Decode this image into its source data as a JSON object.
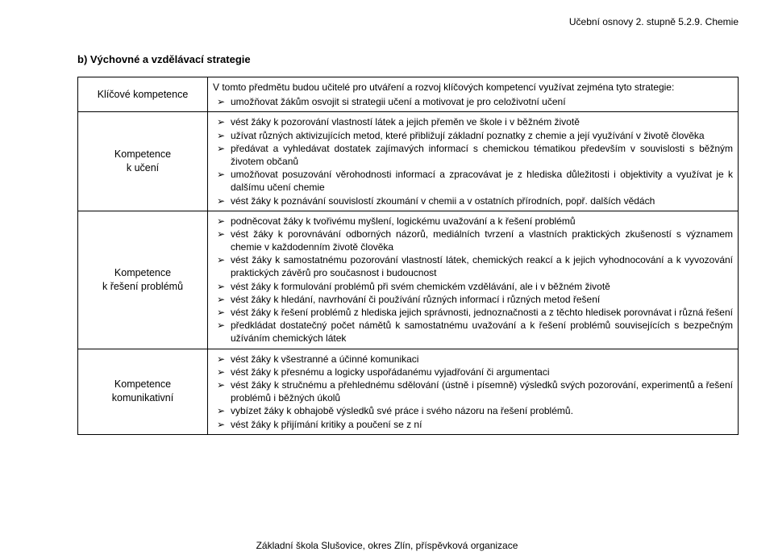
{
  "topRight": "Učební osnovy 2. stupně 5.2.9. Chemie",
  "heading": "b) Výchovné a vzdělávací strategie",
  "footer": "Základní škola Slušovice, okres Zlín, příspěvková organizace",
  "styles": {
    "pageWidth": 960,
    "pageHeight": 689,
    "bodyFontSize": 12,
    "bodyFontFamily": "Arial",
    "textColor": "#000000",
    "bgColor": "#ffffff",
    "borderColor": "#000000",
    "bulletGlyph": "➢",
    "labelColWidth": 148,
    "lineHeight": 1.35,
    "paddingLeft": 96,
    "paddingRight": 44,
    "paddingTop": 20
  },
  "rows": [
    {
      "label": "Klíčové kompetence",
      "intro": "V tomto předmětu budou učitelé pro utváření a rozvoj klíčových kompetencí využívat  zejména tyto strategie:",
      "items": [
        "umožňovat žákům osvojit si strategii učení a motivovat je pro celoživotní učení"
      ]
    },
    {
      "label": "Kompetence\nk učení",
      "items": [
        "vést žáky k pozorování vlastností látek a jejich přeměn ve škole i v běžném životě",
        "užívat různých aktivizujících metod, které přibližují základní poznatky z chemie a její využívání v životě člověka",
        "předávat a vyhledávat dostatek zajímavých informací s chemickou tématikou především v souvislosti s běžným životem občanů",
        "umožňovat posuzování věrohodnosti informací a zpracovávat je z hlediska důležitosti i objektivity a využívat je k dalšímu učení chemie",
        "vést žáky k poznávání souvislostí zkoumání v chemii a v ostatních přírodních, popř.  dalších vědách"
      ]
    },
    {
      "label": "Kompetence\nk řešení problémů",
      "items": [
        "podněcovat žáky k tvořivému myšlení, logickému uvažování a k řešení problémů",
        "vést žáky k porovnávání odborných názorů, mediálních tvrzení a vlastních praktických zkušeností s významem chemie v každodenním životě člověka",
        "vést žáky k samostatnému pozorování vlastností látek, chemických reakcí a k jejich vyhodnocování a k vyvozování praktických závěrů pro současnost i budoucnost",
        "vést žáky k formulování problémů při svém chemickém vzdělávání, ale i v běžném životě",
        "vést žáky k hledání, navrhování či používání různých informací i různých metod řešení",
        "vést žáky k řešení problémů z hlediska jejich správnosti, jednoznačnosti a z těchto hledisek porovnávat i různá řešení",
        "předkládat dostatečný počet námětů k samostatnému uvažování a k řešení problémů souvisejících s bezpečným užíváním chemických látek"
      ]
    },
    {
      "label": "Kompetence\nkomunikativní",
      "items": [
        "vést žáky k všestranné a účinné komunikaci",
        "vést žáky k přesnému a logicky uspořádanému vyjadřování či argumentaci",
        "vést žáky k stručnému a přehlednému sdělování (ústně i písemně) výsledků svých pozorování, experimentů a řešení problémů i běžných úkolů",
        "vybízet žáky k obhajobě výsledků své práce i svého názoru na řešení problémů.",
        "vést žáky k přijímání kritiky a poučení se z ní"
      ]
    }
  ]
}
